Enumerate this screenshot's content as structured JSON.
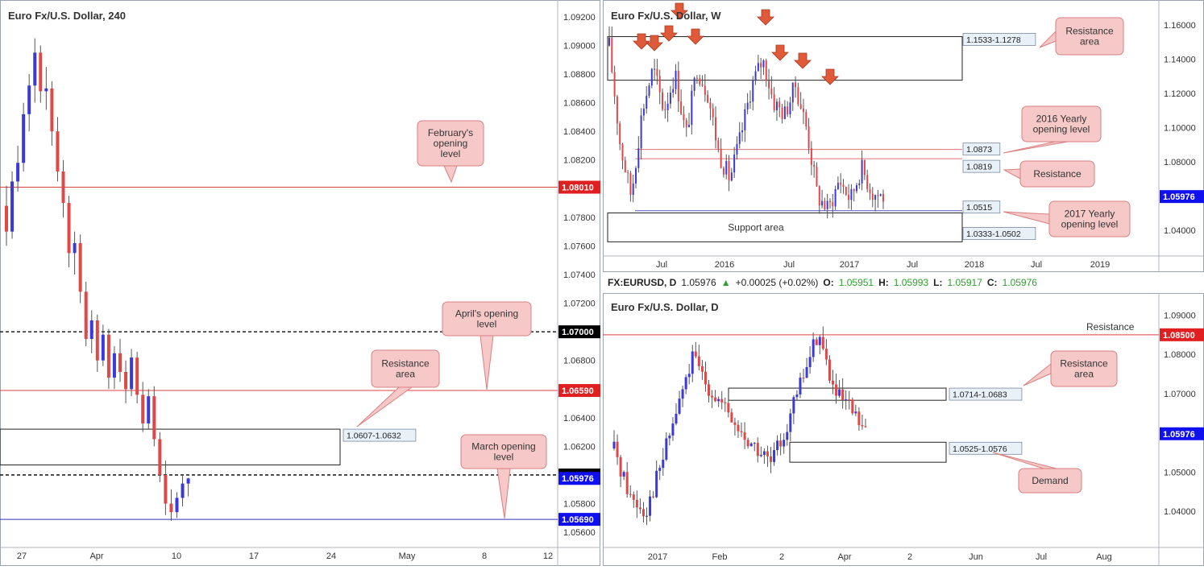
{
  "chart_data": [
    {
      "type": "candlestick",
      "title": "Euro Fx/U.S. Dollar, 240",
      "x_ticks": [
        "27",
        "Apr",
        "10",
        "17",
        "24",
        "May",
        "8",
        "12"
      ],
      "y_ticks": [
        "1.09200",
        "1.09000",
        "1.08800",
        "1.08600",
        "1.08400",
        "1.08200",
        "1.08000",
        "1.07800",
        "1.07600",
        "1.07400",
        "1.07200",
        "1.07000",
        "1.06800",
        "1.06600",
        "1.06400",
        "1.06200",
        "1.06000",
        "1.05800",
        "1.05600"
      ],
      "ylim": [
        1.0555,
        1.0925
      ],
      "price_labels": [
        {
          "value": 1.0801,
          "text": "1.08010",
          "color": "#e02020"
        },
        {
          "value": 1.07,
          "text": "1.07000",
          "color": "#000000"
        },
        {
          "value": 1.0659,
          "text": "1.06590",
          "color": "#e02020"
        },
        {
          "value": 1.06,
          "text": "1.06000",
          "color": "#000000"
        },
        {
          "value": 1.05976,
          "text": "1.05976",
          "color": "#1010ee"
        },
        {
          "value": 1.0569,
          "text": "1.05690",
          "color": "#1010ee"
        }
      ],
      "lines": [
        {
          "value": 1.0801,
          "style": "solid",
          "color": "#e04040"
        },
        {
          "value": 1.07,
          "style": "dashed",
          "color": "#222222"
        },
        {
          "value": 1.0659,
          "style": "solid",
          "color": "#e04040"
        },
        {
          "value": 1.06,
          "style": "dashed",
          "color": "#222222"
        },
        {
          "value": 1.0569,
          "style": "solid",
          "color": "#3030c0"
        }
      ],
      "zones": [
        {
          "top": 1.0632,
          "bottom": 1.0607,
          "label": "1.0607-1.0632"
        }
      ],
      "callouts": [
        {
          "text": "February's opening level"
        },
        {
          "text": "April's opening level"
        },
        {
          "text": "Resistance area"
        },
        {
          "text": "March opening level"
        }
      ],
      "candles": [
        [
          1.0788,
          1.0802,
          1.076,
          1.077
        ],
        [
          1.077,
          1.0812,
          1.0765,
          1.0805
        ],
        [
          1.0805,
          1.083,
          1.0798,
          1.0818
        ],
        [
          1.0818,
          1.086,
          1.0812,
          1.0852
        ],
        [
          1.0852,
          1.088,
          1.084,
          1.0872
        ],
        [
          1.0872,
          1.0905,
          1.086,
          1.0895
        ],
        [
          1.0895,
          1.09,
          1.086,
          1.0868
        ],
        [
          1.0868,
          1.0885,
          1.0855,
          1.087
        ],
        [
          1.087,
          1.0875,
          1.083,
          1.084
        ],
        [
          1.084,
          1.085,
          1.0805,
          1.0812
        ],
        [
          1.0812,
          1.082,
          1.078,
          1.079
        ],
        [
          1.079,
          1.0795,
          1.0745,
          1.0755
        ],
        [
          1.0755,
          1.077,
          1.074,
          1.0762
        ],
        [
          1.0762,
          1.0768,
          1.072,
          1.0728
        ],
        [
          1.0728,
          1.0735,
          1.069,
          1.0695
        ],
        [
          1.0695,
          1.0715,
          1.0685,
          1.0708
        ],
        [
          1.0708,
          1.0712,
          1.0672,
          1.068
        ],
        [
          1.068,
          1.0705,
          1.0676,
          1.0698
        ],
        [
          1.0698,
          1.0702,
          1.066,
          1.0668
        ],
        [
          1.0668,
          1.069,
          1.066,
          1.0685
        ],
        [
          1.0685,
          1.0695,
          1.0665,
          1.0672
        ],
        [
          1.0672,
          1.068,
          1.065,
          1.066
        ],
        [
          1.066,
          1.0688,
          1.0655,
          1.0682
        ],
        [
          1.0682,
          1.0686,
          1.065,
          1.0656
        ],
        [
          1.0656,
          1.0665,
          1.063,
          1.0636
        ],
        [
          1.0636,
          1.066,
          1.0632,
          1.0655
        ],
        [
          1.0655,
          1.0662,
          1.062,
          1.0625
        ],
        [
          1.0625,
          1.063,
          1.0595,
          1.06
        ],
        [
          1.06,
          1.061,
          1.0572,
          1.058
        ],
        [
          1.058,
          1.059,
          1.0568,
          1.0574
        ],
        [
          1.0574,
          1.0588,
          1.057,
          1.0584
        ],
        [
          1.0584,
          1.06,
          1.0578,
          1.0594
        ],
        [
          1.0594,
          1.0598,
          1.0585,
          1.05976
        ]
      ]
    },
    {
      "type": "candlestick",
      "title": "Euro Fx/U.S. Dollar, W",
      "x_ticks": [
        "Jul",
        "2016",
        "Jul",
        "2017",
        "Jul",
        "2018",
        "Jul",
        "2019"
      ],
      "y_ticks": [
        "1.16000",
        "1.14000",
        "1.12000",
        "1.10000",
        "1.08000",
        "1.06000",
        "1.04000"
      ],
      "ylim": [
        1.025,
        1.17
      ],
      "current_price": {
        "value": 1.05976,
        "text": "1.05976"
      },
      "level_labels": [
        {
          "value": 1.1533,
          "text": "1.1533-1.1278"
        },
        {
          "value": 1.0873,
          "text": "1.0873"
        },
        {
          "value": 1.0819,
          "text": "1.0819"
        },
        {
          "value": 1.0515,
          "text": "1.0515"
        },
        {
          "value": 1.0502,
          "text": "1.0333-1.0502"
        }
      ],
      "zones": [
        {
          "top": 1.1533,
          "bottom": 1.1278,
          "label": "1.1533-1.1278"
        },
        {
          "top": 1.0502,
          "bottom": 1.0333,
          "label": "1.0333-1.0502",
          "text": "Support area"
        }
      ],
      "lines": [
        {
          "value": 1.0873,
          "color": "#e07070"
        },
        {
          "value": 1.0819,
          "color": "#e07070"
        },
        {
          "value": 1.0515,
          "color": "#5050c0"
        }
      ],
      "callouts": [
        {
          "text": "Resistance area"
        },
        {
          "text": "2016 Yearly opening level"
        },
        {
          "text": "Resistance"
        },
        {
          "text": "2017 Yearly opening level"
        }
      ],
      "arrow_count": 10
    },
    {
      "type": "candlestick",
      "title": "Euro Fx/U.S. Dollar, D",
      "symbol_bar": {
        "symbol": "FX:EURUSD, D",
        "last": "1.05976",
        "change": "+0.00025 (+0.02%)",
        "O": "1.05951",
        "H": "1.05993",
        "L": "1.05917",
        "C": "1.05976"
      },
      "x_ticks": [
        "2017",
        "Feb",
        "2",
        "Apr",
        "2",
        "Jun",
        "Jul",
        "Aug"
      ],
      "y_ticks": [
        "1.09000",
        "1.08000",
        "1.07000",
        "1.06000",
        "1.05000",
        "1.04000"
      ],
      "ylim": [
        1.032,
        1.094
      ],
      "current_price": {
        "value": 1.05976,
        "text": "1.05976"
      },
      "price_labels": [
        {
          "value": 1.085,
          "text": "1.08500",
          "color": "#e02020"
        }
      ],
      "lines": [
        {
          "value": 1.085,
          "color": "#e04040",
          "label": "Resistance"
        }
      ],
      "zones": [
        {
          "top": 1.0714,
          "bottom": 1.0683,
          "label": "1.0714-1.0683"
        },
        {
          "top": 1.0576,
          "bottom": 1.0525,
          "label": "1.0525-1.0576"
        }
      ],
      "callouts": [
        {
          "text": "Resistance area"
        },
        {
          "text": "Demand"
        }
      ]
    }
  ]
}
